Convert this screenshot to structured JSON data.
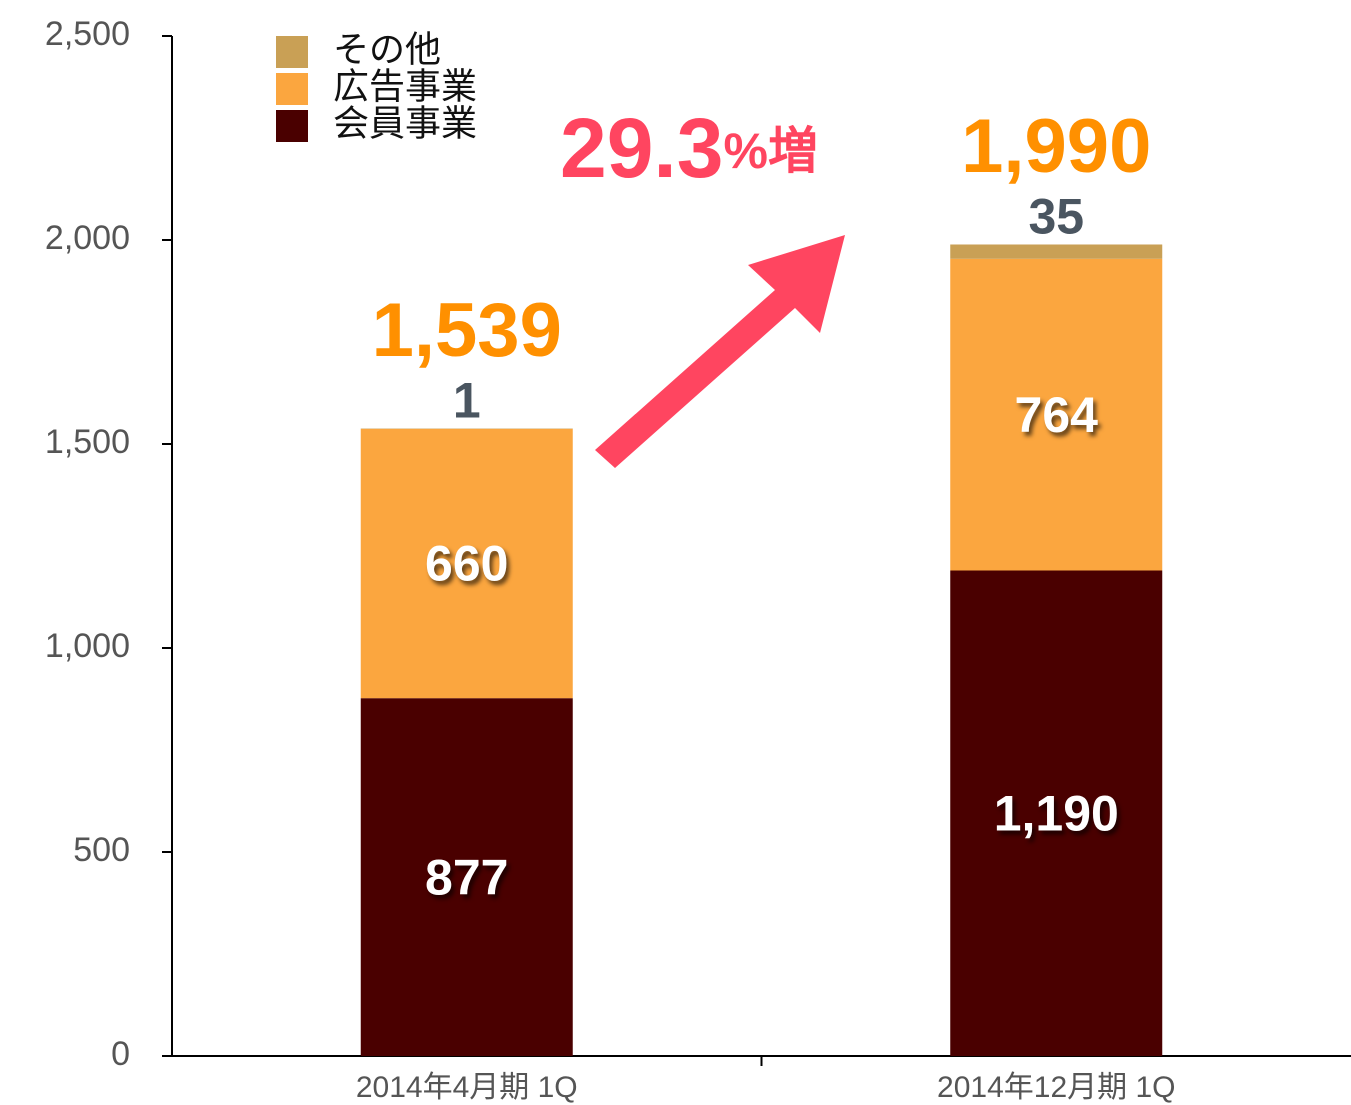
{
  "chart_data": {
    "type": "stacked_bar",
    "categories": [
      "2014年4月期 1Q",
      "2014年12月期 1Q"
    ],
    "series": [
      {
        "name": "会員事業",
        "color": "#4a0000",
        "values": [
          877,
          1190
        ],
        "value_labels": [
          "877",
          "1,190"
        ]
      },
      {
        "name": "広告事業",
        "color": "#fba63f",
        "values": [
          660,
          764
        ]
      },
      {
        "name": "その他",
        "color": "#c9a055",
        "values": [
          1,
          35
        ]
      }
    ],
    "totals": [
      1539,
      1990
    ],
    "total_labels": [
      "1,539",
      "1,990"
    ],
    "annotation": {
      "value": 29.3,
      "suffix": "%増"
    },
    "ylim": [
      0,
      2500
    ],
    "yticks": [
      0,
      500,
      {
        "value": 1000,
        "label": "1,000"
      },
      {
        "value": 1500,
        "label": "1,500"
      },
      {
        "value": 2000,
        "label": "2,000"
      },
      {
        "value": 2500,
        "label": "2,500"
      }
    ],
    "legend": "upper left"
  }
}
